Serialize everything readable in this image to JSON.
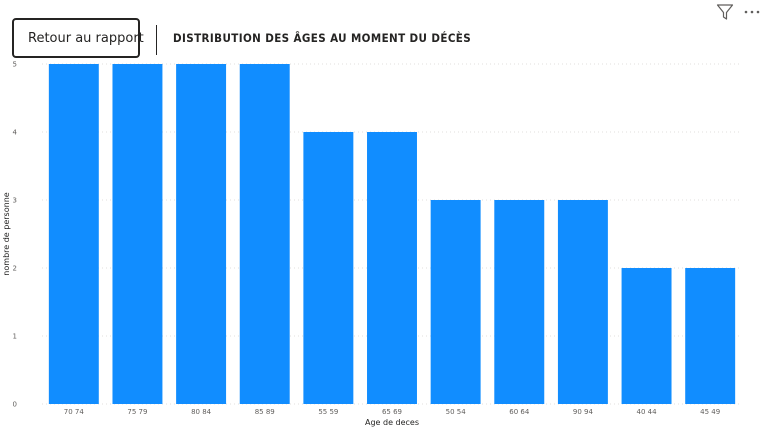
{
  "header": {
    "back_label": "Retour au rapport",
    "title": "DISTRIBUTION DES ÂGES AU MOMENT DU DÉCÈS"
  },
  "icons": {
    "back": "chevron-left-icon",
    "filter": "filter-icon",
    "more": "more-options-icon"
  },
  "colors": {
    "bar": "#118dff",
    "text": "#252423",
    "axis_text": "#605e5c",
    "grid": "#e1dfdd"
  },
  "chart_data": {
    "type": "bar",
    "title": "DISTRIBUTION DES ÂGES AU MOMENT DU DÉCÈS",
    "xlabel": "Age de deces",
    "ylabel": "nombre de personne",
    "categories": [
      "70 74",
      "75 79",
      "80 84",
      "85 89",
      "55 59",
      "65 69",
      "50 54",
      "60 64",
      "90 94",
      "40 44",
      "45 49"
    ],
    "values": [
      5,
      5,
      5,
      5,
      4,
      4,
      3,
      3,
      3,
      2,
      2
    ],
    "ylim": [
      0,
      5
    ],
    "yticks": [
      0,
      1,
      2,
      3,
      4,
      5
    ],
    "grid": true,
    "legend": "none"
  }
}
